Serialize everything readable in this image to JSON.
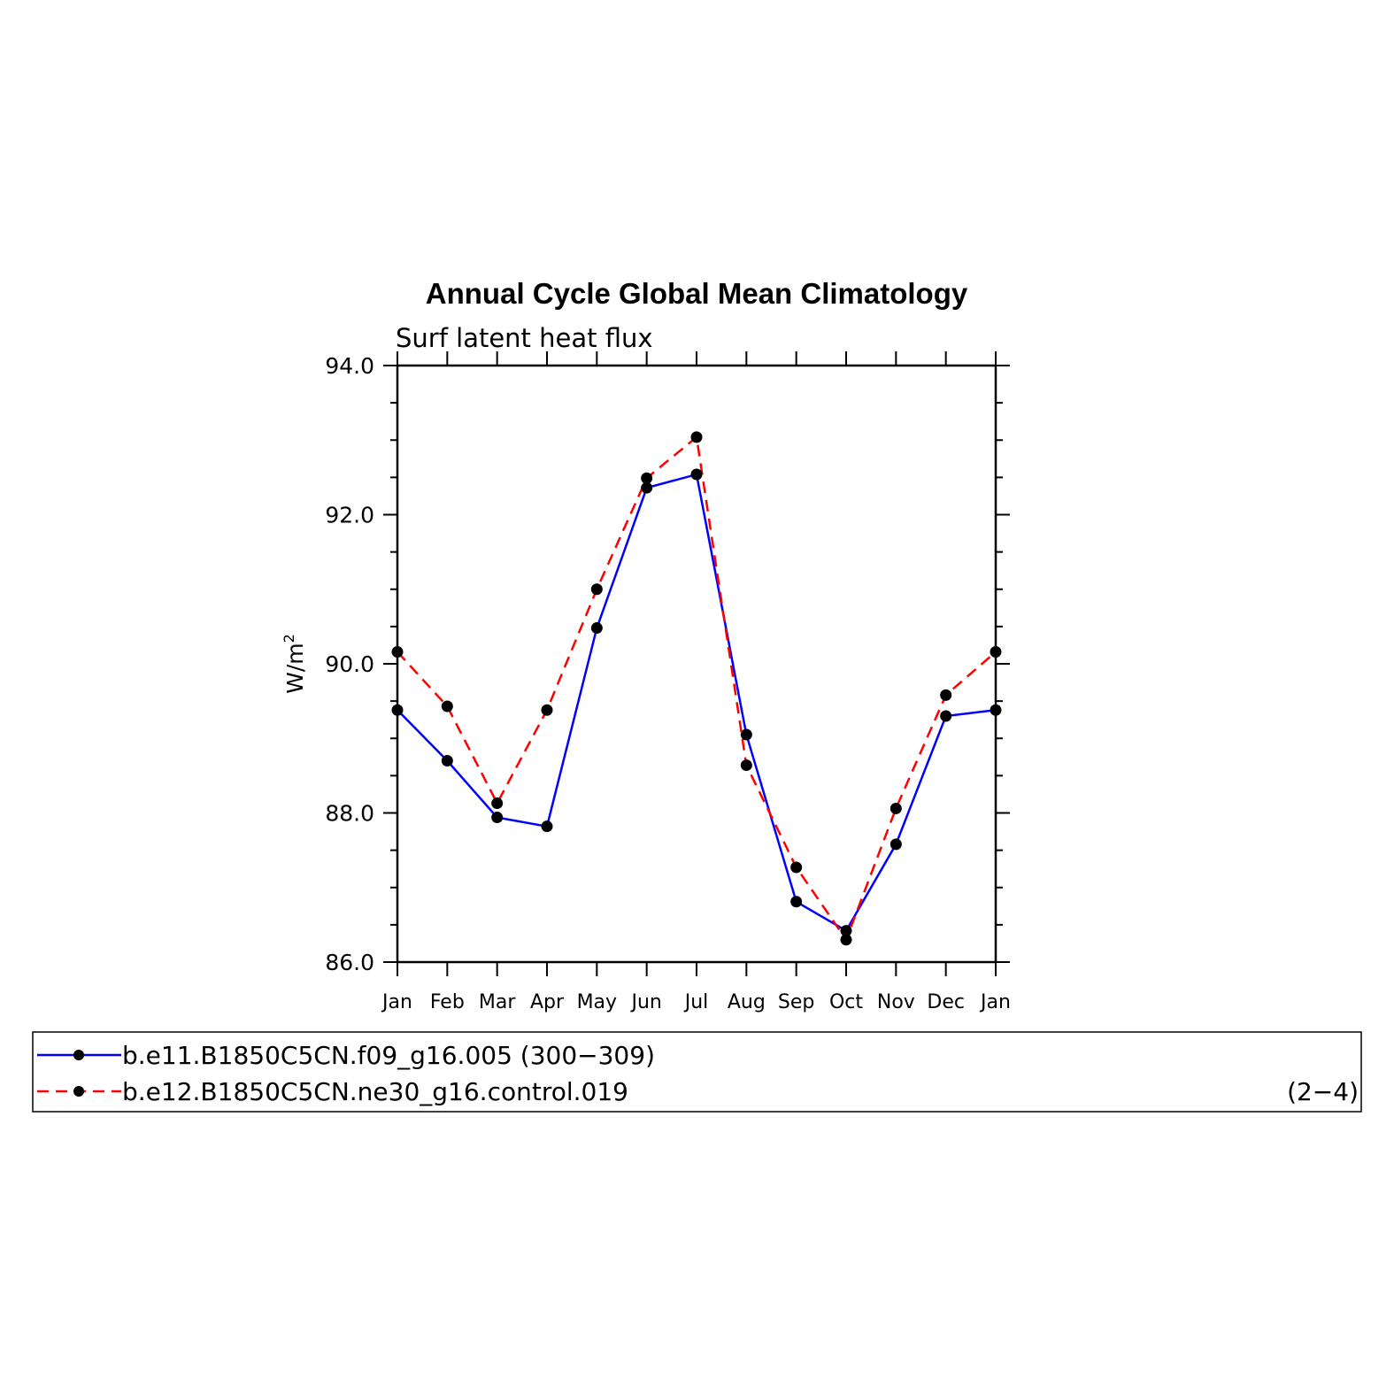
{
  "chart_data": {
    "type": "line",
    "title": "Annual Cycle Global Mean Climatology",
    "subtitle": "Surf latent heat flux",
    "ylabel": "W/m",
    "ylabel_superscript": "2",
    "xlabel": "",
    "categories": [
      "Jan",
      "Feb",
      "Mar",
      "Apr",
      "May",
      "Jun",
      "Jul",
      "Aug",
      "Sep",
      "Oct",
      "Nov",
      "Dec",
      "Jan"
    ],
    "ylim": [
      86.0,
      94.0
    ],
    "yticks": [
      "86.0",
      "88.0",
      "90.0",
      "92.0",
      "94.0"
    ],
    "grid": false,
    "legend_position": "bottom",
    "series": [
      {
        "name": "b.e11.B1850C5CN.f09_g16.005 (300−309)",
        "color": "#0000ff",
        "dash": "solid",
        "marker": "filled-circle",
        "values": [
          89.38,
          88.7,
          87.94,
          87.82,
          90.48,
          92.36,
          92.54,
          89.05,
          86.81,
          86.42,
          87.58,
          89.3,
          89.38
        ]
      },
      {
        "name": "b.e12.B1850C5CN.ne30_g16.control.019",
        "color": "#ff0000",
        "dash": "dashed",
        "marker": "filled-circle",
        "values": [
          90.16,
          89.43,
          88.13,
          89.38,
          91.0,
          92.49,
          93.04,
          88.64,
          87.27,
          86.3,
          88.06,
          89.58,
          90.16
        ]
      }
    ],
    "annotations": [
      "(2−4)"
    ]
  }
}
